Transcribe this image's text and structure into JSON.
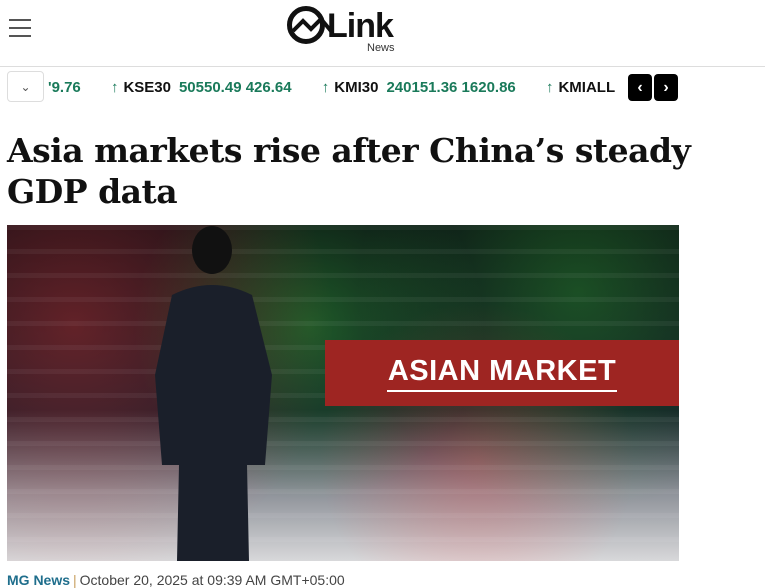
{
  "header": {
    "logo_text": "Link",
    "logo_sub": "News",
    "menu_icon": "hamburger-icon"
  },
  "ticker": {
    "items": [
      {
        "symbol": "",
        "value": "'9.76",
        "change": ""
      },
      {
        "symbol": "KSE30",
        "value": "50550.49",
        "change": "426.64"
      },
      {
        "symbol": "KMI30",
        "value": "240151.36",
        "change": "1620.86"
      },
      {
        "symbol": "KMIALL",
        "value": "",
        "change": ""
      }
    ],
    "up_arrow": "↑",
    "prev": "‹",
    "next": "›",
    "dropdown": "⌄",
    "up_color": "#1a7a5a"
  },
  "article": {
    "title": "Asia markets rise after China’s steady GDP data",
    "image_banner": "ASIAN MARKET",
    "source": "MG News",
    "separator": "|",
    "date": "October 20, 2025 at 09:39 AM GMT+05:00"
  }
}
